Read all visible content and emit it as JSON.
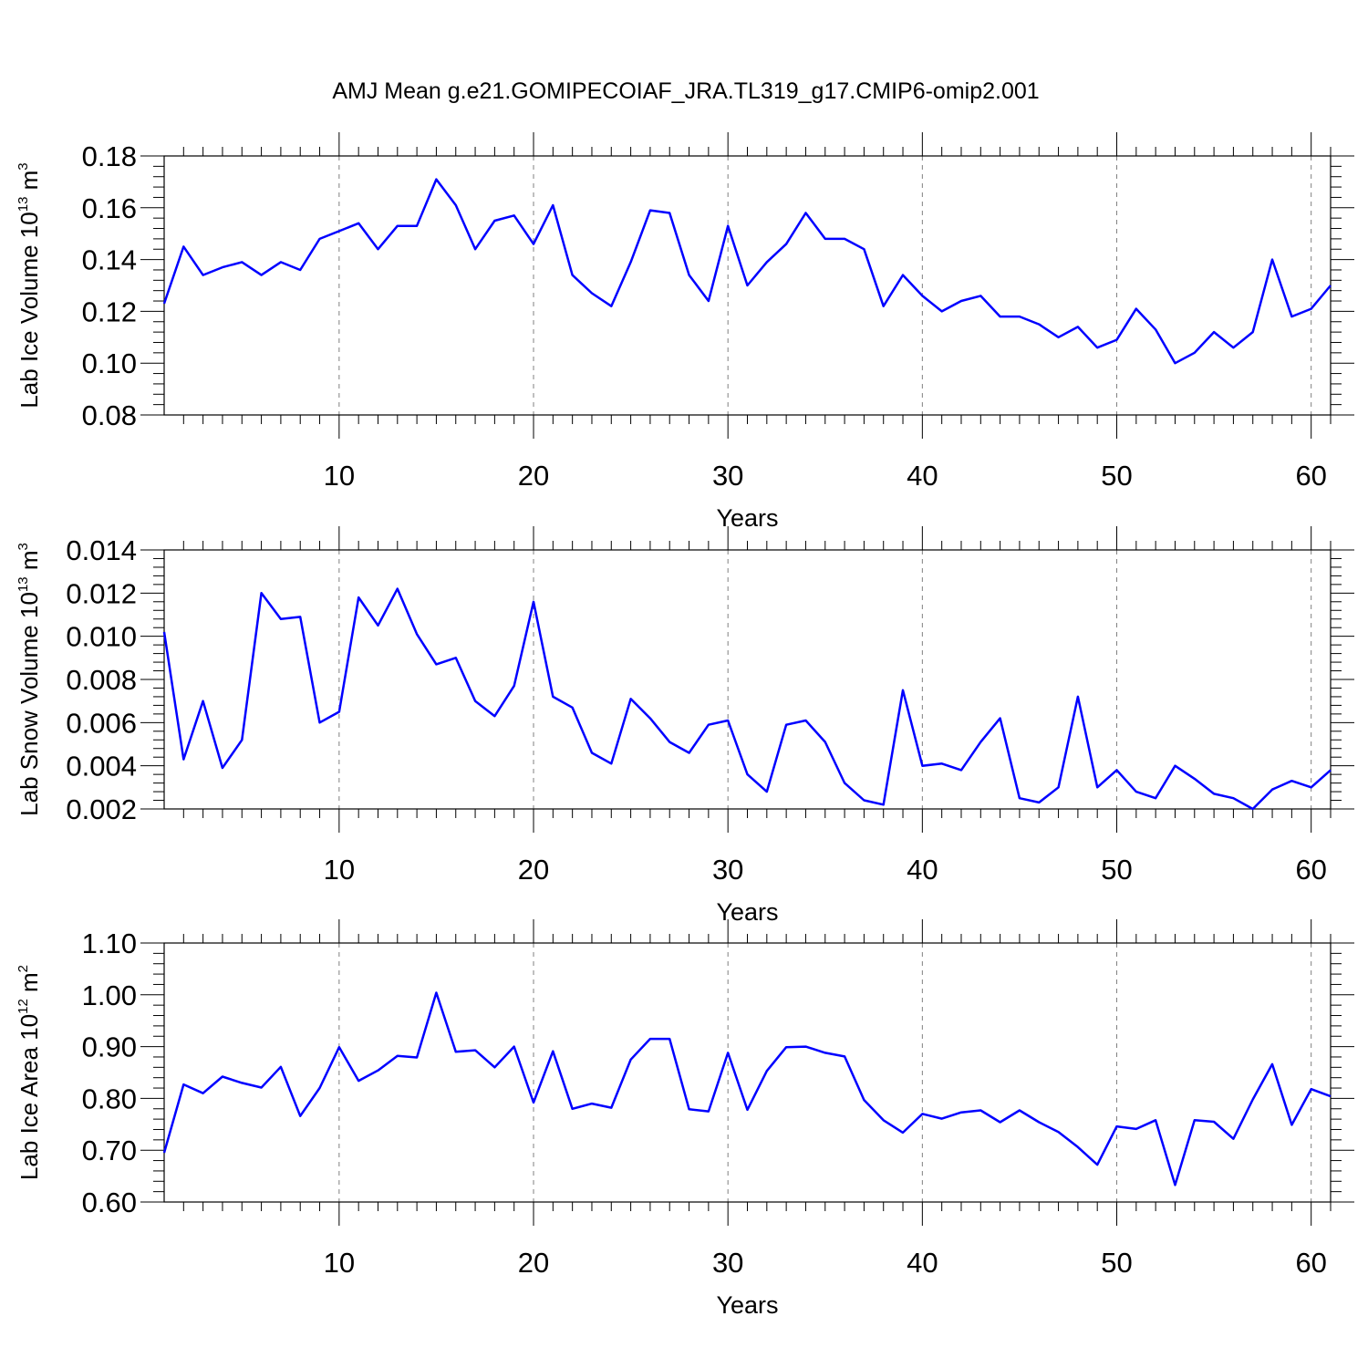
{
  "title": "AMJ Mean g.e21.GOMIPECOIAF_JRA.TL319_g17.CMIP6-omip2.001",
  "colors": {
    "line": "#0000ff",
    "grid": "#808080",
    "axis": "#000000"
  },
  "chart_data": [
    {
      "type": "line",
      "ylabel": "Lab Ice Volume 10",
      "ylabel_exp": "13",
      "ylabel_unit": " m",
      "ylabel_unit_exp": "3",
      "xlabel": "Years",
      "xlim": [
        1,
        61
      ],
      "ylim": [
        0.08,
        0.18
      ],
      "yticks": [
        "0.08",
        "0.10",
        "0.12",
        "0.14",
        "0.16",
        "0.18"
      ],
      "ytick_values": [
        0.08,
        0.1,
        0.12,
        0.14,
        0.16,
        0.18
      ],
      "xticks": [
        "10",
        "20",
        "30",
        "40",
        "50",
        "60"
      ],
      "xtick_values": [
        10,
        20,
        30,
        40,
        50,
        60
      ],
      "grid": "vertical-dashed",
      "x_start": 1,
      "values": [
        0.123,
        0.145,
        0.134,
        0.137,
        0.139,
        0.134,
        0.139,
        0.136,
        0.148,
        0.151,
        0.154,
        0.144,
        0.153,
        0.153,
        0.171,
        0.161,
        0.144,
        0.155,
        0.157,
        0.146,
        0.161,
        0.134,
        0.127,
        0.122,
        0.139,
        0.159,
        0.158,
        0.134,
        0.124,
        0.153,
        0.13,
        0.139,
        0.146,
        0.158,
        0.148,
        0.148,
        0.144,
        0.122,
        0.134,
        0.126,
        0.12,
        0.124,
        0.126,
        0.118,
        0.118,
        0.115,
        0.11,
        0.114,
        0.106,
        0.109,
        0.121,
        0.113,
        0.1,
        0.104,
        0.112,
        0.106,
        0.112,
        0.14,
        0.118,
        0.121,
        0.13
      ]
    },
    {
      "type": "line",
      "ylabel": "Lab Snow Volume 10",
      "ylabel_exp": "13",
      "ylabel_unit": " m",
      "ylabel_unit_exp": "3",
      "xlabel": "Years",
      "xlim": [
        1,
        61
      ],
      "ylim": [
        0.002,
        0.014
      ],
      "yticks": [
        "0.002",
        "0.004",
        "0.006",
        "0.008",
        "0.010",
        "0.012",
        "0.014"
      ],
      "ytick_values": [
        0.002,
        0.004,
        0.006,
        0.008,
        0.01,
        0.012,
        0.014
      ],
      "xticks": [
        "10",
        "20",
        "30",
        "40",
        "50",
        "60"
      ],
      "xtick_values": [
        10,
        20,
        30,
        40,
        50,
        60
      ],
      "grid": "vertical-dashed",
      "x_start": 1,
      "values": [
        0.0102,
        0.0043,
        0.007,
        0.0039,
        0.0052,
        0.012,
        0.0108,
        0.0109,
        0.006,
        0.0065,
        0.0118,
        0.0105,
        0.0122,
        0.0101,
        0.0087,
        0.009,
        0.007,
        0.0063,
        0.0077,
        0.0116,
        0.0072,
        0.0067,
        0.0046,
        0.0041,
        0.0071,
        0.0062,
        0.0051,
        0.0046,
        0.0059,
        0.0061,
        0.0036,
        0.0028,
        0.0059,
        0.0061,
        0.0051,
        0.0032,
        0.0024,
        0.0022,
        0.0075,
        0.004,
        0.0041,
        0.0038,
        0.0051,
        0.0062,
        0.0025,
        0.0023,
        0.003,
        0.0072,
        0.003,
        0.0038,
        0.0028,
        0.0025,
        0.004,
        0.0034,
        0.0027,
        0.0025,
        0.002,
        0.0029,
        0.0033,
        0.003,
        0.0038
      ]
    },
    {
      "type": "line",
      "ylabel": "Lab Ice Area 10",
      "ylabel_exp": "12",
      "ylabel_unit": " m",
      "ylabel_unit_exp": "2",
      "xlabel": "Years",
      "xlim": [
        1,
        61
      ],
      "ylim": [
        0.6,
        1.1
      ],
      "yticks": [
        "0.60",
        "0.70",
        "0.80",
        "0.90",
        "1.00",
        "1.10"
      ],
      "ytick_values": [
        0.6,
        0.7,
        0.8,
        0.9,
        1.0,
        1.1
      ],
      "xticks": [
        "10",
        "20",
        "30",
        "40",
        "50",
        "60"
      ],
      "xtick_values": [
        10,
        20,
        30,
        40,
        50,
        60
      ],
      "grid": "vertical-dashed",
      "x_start": 1,
      "values": [
        0.695,
        0.827,
        0.81,
        0.842,
        0.83,
        0.821,
        0.861,
        0.766,
        0.82,
        0.899,
        0.834,
        0.854,
        0.882,
        0.879,
        1.004,
        0.89,
        0.893,
        0.86,
        0.9,
        0.792,
        0.891,
        0.78,
        0.79,
        0.782,
        0.875,
        0.915,
        0.915,
        0.779,
        0.775,
        0.888,
        0.778,
        0.853,
        0.899,
        0.9,
        0.888,
        0.881,
        0.797,
        0.758,
        0.734,
        0.77,
        0.761,
        0.773,
        0.777,
        0.754,
        0.777,
        0.754,
        0.735,
        0.706,
        0.672,
        0.746,
        0.741,
        0.758,
        0.633,
        0.758,
        0.755,
        0.722,
        0.798,
        0.866,
        0.749,
        0.818,
        0.804
      ]
    }
  ]
}
